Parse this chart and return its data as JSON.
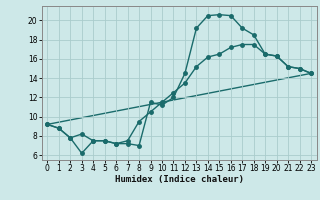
{
  "xlabel": "Humidex (Indice chaleur)",
  "bg_color": "#cde8e8",
  "grid_color": "#aacccc",
  "line_color": "#1a6b6b",
  "xlim": [
    -0.5,
    23.5
  ],
  "ylim": [
    5.5,
    21.5
  ],
  "xticks": [
    0,
    1,
    2,
    3,
    4,
    5,
    6,
    7,
    8,
    9,
    10,
    11,
    12,
    13,
    14,
    15,
    16,
    17,
    18,
    19,
    20,
    21,
    22,
    23
  ],
  "yticks": [
    6,
    8,
    10,
    12,
    14,
    16,
    18,
    20
  ],
  "series1_x": [
    0,
    1,
    2,
    3,
    4,
    5,
    6,
    7,
    8,
    9,
    10,
    11,
    12,
    13,
    14,
    15,
    16,
    17,
    18,
    19,
    20,
    21,
    22,
    23
  ],
  "series1_y": [
    9.2,
    8.8,
    7.8,
    6.2,
    7.5,
    7.5,
    7.2,
    7.2,
    7.0,
    11.5,
    11.2,
    12.0,
    14.5,
    19.2,
    20.5,
    20.6,
    20.5,
    19.2,
    18.5,
    16.5,
    16.3,
    15.2,
    15.0,
    14.5
  ],
  "series2_x": [
    0,
    1,
    2,
    3,
    4,
    5,
    6,
    7,
    8,
    9,
    10,
    11,
    12,
    13,
    14,
    15,
    16,
    17,
    18,
    19,
    20,
    21,
    22,
    23
  ],
  "series2_y": [
    9.2,
    8.8,
    7.8,
    8.2,
    7.5,
    7.5,
    7.2,
    7.5,
    9.5,
    10.5,
    11.5,
    12.5,
    13.5,
    15.2,
    16.2,
    16.5,
    17.2,
    17.5,
    17.5,
    16.5,
    16.3,
    15.2,
    15.0,
    14.5
  ],
  "series3_x": [
    0,
    23
  ],
  "series3_y": [
    9.2,
    14.5
  ],
  "marker_size": 2.5,
  "line_width": 1.0
}
